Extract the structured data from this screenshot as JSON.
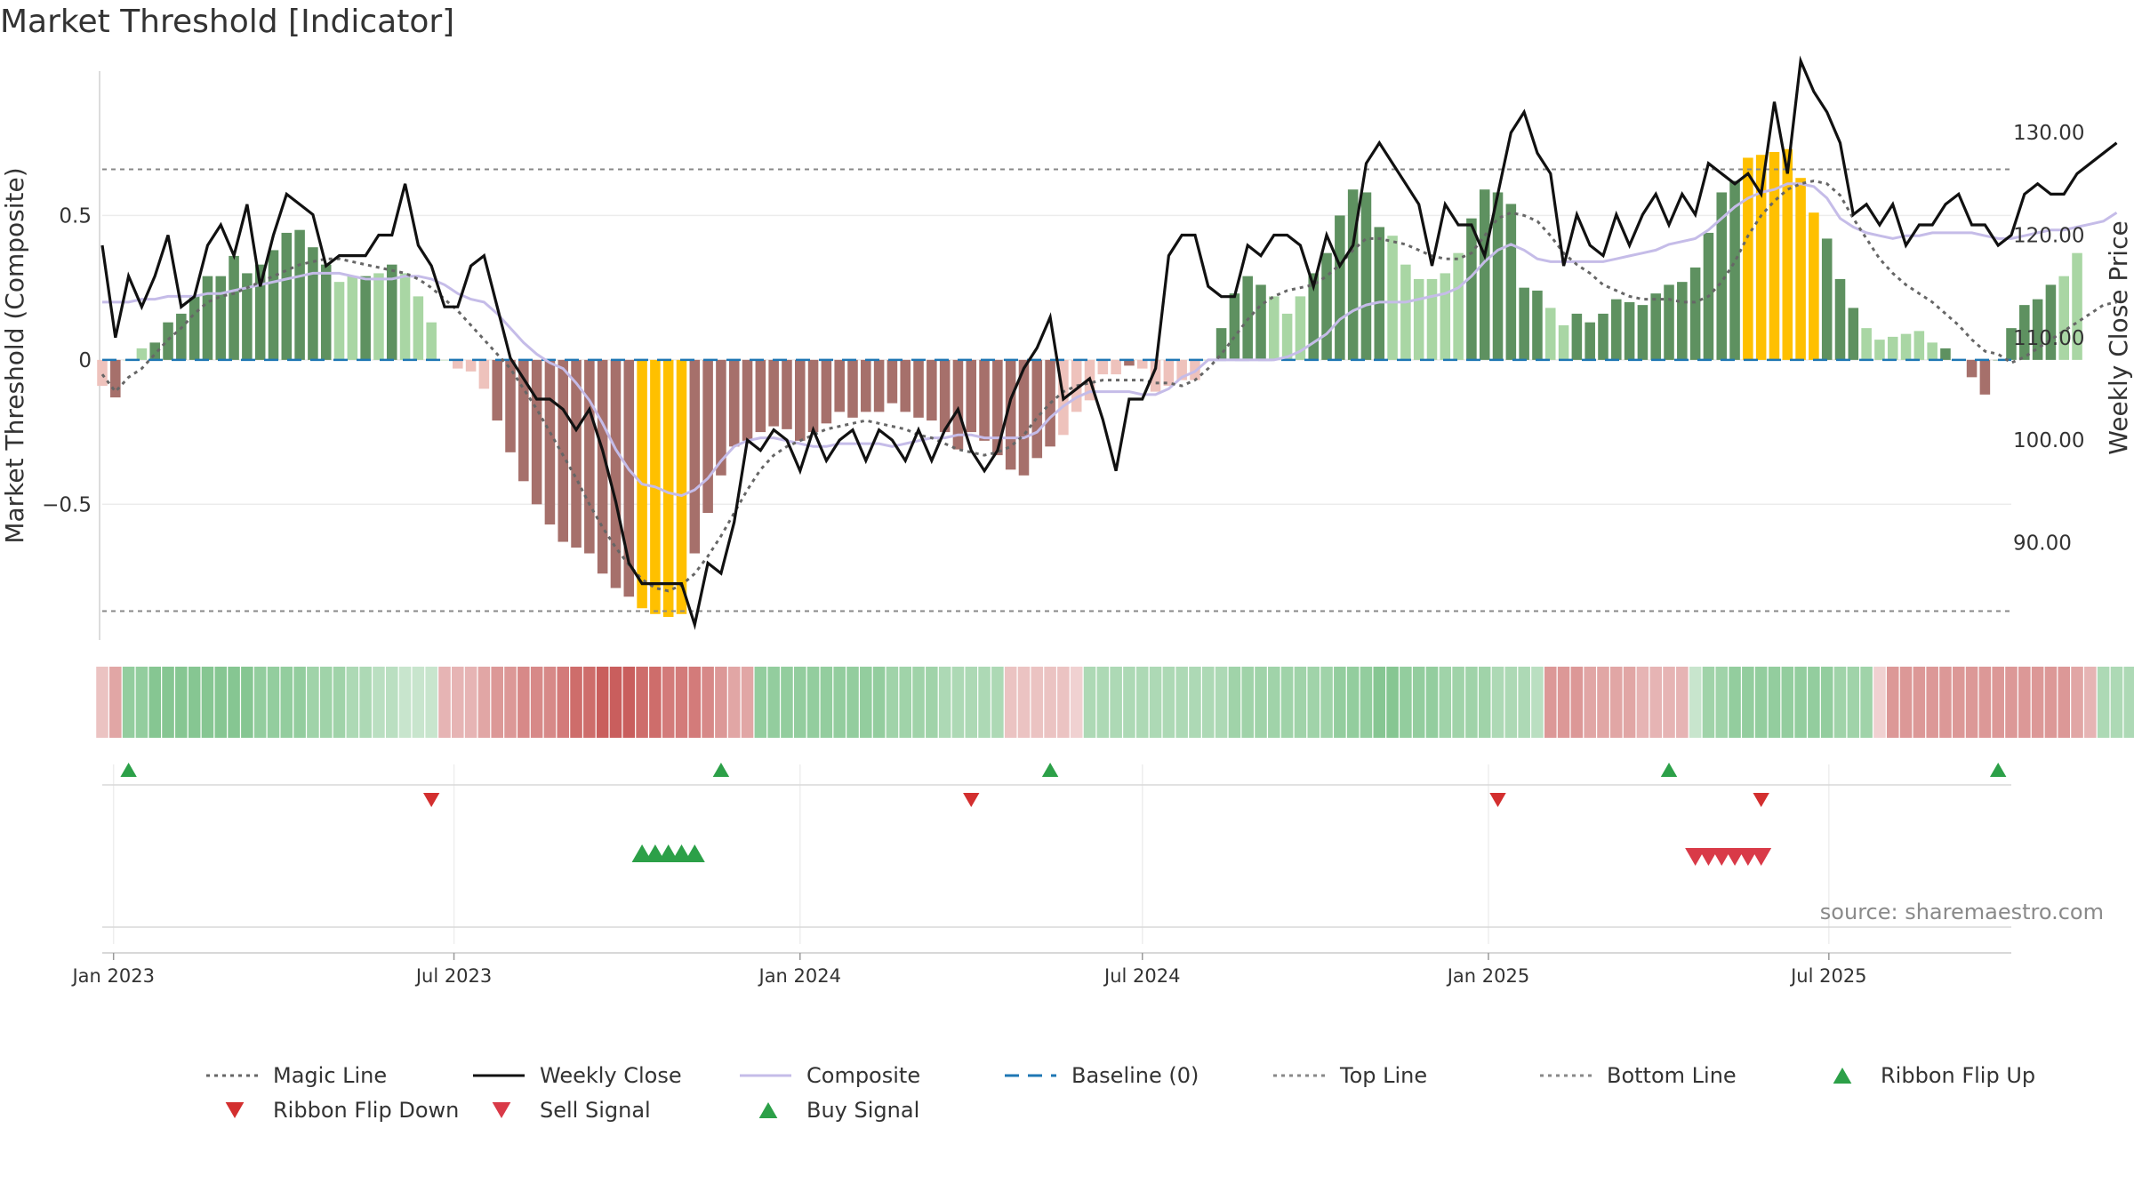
{
  "title": "Market Threshold [Indicator]",
  "source_note": "source: sharemaestro.com",
  "colors": {
    "bar_pos_strong": "#5e9160",
    "bar_pos_weak": "#a9d6a4",
    "bar_neg_strong": "#a6706b",
    "bar_neg_weak": "#eec2bc",
    "bar_extreme": "#ffc000",
    "close": "#111111",
    "composite": "#c5bce8",
    "magic": "#666666",
    "baseline": "#1f77b4",
    "threshold": "#888888",
    "buy": "#2ca048",
    "sell": "#d93a48",
    "flip_down": "#d32f2f"
  },
  "chart_data": {
    "type": "bar",
    "xlabel": "",
    "ylabel": "Market Threshold (Composite)",
    "y2label": "Weekly Close Price",
    "ylim": [
      -0.97,
      1.0
    ],
    "y2lim": [
      80.5,
      136
    ],
    "yticks": [
      0.5,
      0,
      -0.5
    ],
    "ytick_labels": [
      "0.5",
      "0",
      "−0.5"
    ],
    "y2ticks": [
      130,
      120,
      110,
      100,
      90
    ],
    "y2tick_labels": [
      "130.00",
      "120.00",
      "110.00",
      "100.00",
      "90.00"
    ],
    "top_line": 0.66,
    "bottom_line": -0.87,
    "x_start": "2022-12-26",
    "x_end": "2025-10-06",
    "x_ticks": [
      {
        "label": "Jan 2023",
        "date": "2023-01-01"
      },
      {
        "label": "Jul 2023",
        "date": "2023-07-01"
      },
      {
        "label": "Jan 2024",
        "date": "2024-01-01"
      },
      {
        "label": "Jul 2024",
        "date": "2024-07-01"
      },
      {
        "label": "Jan 2025",
        "date": "2025-01-01"
      },
      {
        "label": "Jul 2025",
        "date": "2025-07-01"
      }
    ],
    "composite_bars": [
      {
        "start": "2022-12-26",
        "values": [
          -0.09,
          -0.13,
          0.0,
          0.04,
          0.06,
          0.13,
          0.16,
          0.22,
          0.29,
          0.29,
          0.36,
          0.3,
          0.33,
          0.38,
          0.44,
          0.45,
          0.39,
          0.33,
          0.27,
          0.29,
          0.29,
          0.3,
          0.33,
          0.3,
          0.22,
          0.13,
          0.0,
          -0.03,
          -0.04,
          -0.1,
          -0.21,
          -0.32,
          -0.42,
          -0.5,
          -0.57,
          -0.63,
          -0.65,
          -0.67,
          -0.74,
          -0.79,
          -0.82,
          -0.86,
          -0.88,
          -0.89,
          -0.88,
          -0.67,
          -0.53,
          -0.4,
          -0.3,
          -0.28,
          -0.25,
          -0.23,
          -0.24,
          -0.28,
          -0.25,
          -0.22,
          -0.18,
          -0.2,
          -0.18,
          -0.18,
          -0.15,
          -0.18,
          -0.2,
          -0.21,
          -0.25,
          -0.31,
          -0.25,
          -0.28,
          -0.33,
          -0.38,
          -0.4,
          -0.34,
          -0.3,
          -0.26,
          -0.18,
          -0.14,
          -0.05,
          -0.05,
          -0.02,
          -0.03,
          -0.11,
          -0.09,
          -0.07,
          -0.07,
          0.0,
          0.11,
          0.23,
          0.29,
          0.26,
          0.22,
          0.16,
          0.22,
          0.3,
          0.37,
          0.5,
          0.59,
          0.58,
          0.46,
          0.43,
          0.33,
          0.28,
          0.28,
          0.3,
          0.37,
          0.49,
          0.59,
          0.58,
          0.54,
          0.25,
          0.24,
          0.18,
          0.12,
          0.16,
          0.13,
          0.16,
          0.21,
          0.2,
          0.19,
          0.23,
          0.26,
          0.27,
          0.32,
          0.44,
          0.58,
          0.62,
          0.7,
          0.71,
          0.72,
          0.73,
          0.63,
          0.51,
          0.42,
          0.28,
          0.18,
          0.11,
          0.07,
          0.08,
          0.09,
          0.1,
          0.06,
          0.04,
          0.0,
          -0.06,
          -0.12,
          0.0,
          0.11,
          0.19,
          0.21,
          0.26,
          0.29,
          0.37
        ],
        "extreme_idx": [
          41,
          42,
          43,
          44,
          125,
          126,
          127,
          128,
          129,
          130
        ],
        "strong_idx": [
          1,
          4,
          5,
          6,
          7,
          8,
          9,
          10,
          11,
          12,
          13,
          14,
          15,
          16,
          17,
          20,
          22,
          30,
          31,
          32,
          33,
          34,
          35,
          36,
          37,
          38,
          39,
          40,
          41,
          42,
          43,
          44,
          45,
          46,
          47,
          48,
          49,
          50,
          51,
          52,
          53,
          54,
          55,
          56,
          57,
          58,
          59,
          60,
          61,
          62,
          63,
          64,
          65,
          66,
          67,
          68,
          69,
          70,
          71,
          72,
          78,
          85,
          86,
          87,
          88,
          92,
          93,
          94,
          95,
          96,
          97,
          104,
          105,
          106,
          107,
          108,
          109,
          112,
          113,
          114,
          115,
          116,
          117,
          118,
          119,
          120,
          121,
          122,
          123,
          124,
          131,
          132,
          133,
          140,
          141,
          142,
          143,
          144,
          145,
          146,
          147,
          148
        ]
      }
    ],
    "weekly_close": [
      119,
      110,
      116,
      113,
      116,
      120,
      113,
      114,
      119,
      121,
      118,
      123,
      115,
      120,
      124,
      123,
      122,
      117,
      118,
      118,
      118,
      120,
      120,
      125,
      119,
      117,
      113,
      113,
      117,
      118,
      113,
      108,
      106,
      104,
      104,
      103,
      101,
      103,
      99,
      94,
      88,
      86,
      86,
      86,
      86,
      82,
      88,
      87,
      92,
      100,
      99,
      101,
      100,
      97,
      101,
      98,
      100,
      101,
      98,
      101,
      100,
      98,
      101,
      98,
      101,
      103,
      99,
      97,
      99,
      104,
      107,
      109,
      112,
      104,
      105,
      106,
      102,
      97,
      104,
      104,
      107,
      118,
      120,
      120,
      115,
      114,
      114,
      119,
      118,
      120,
      120,
      119,
      115,
      120,
      117,
      119,
      127,
      129,
      127,
      125,
      123,
      117,
      123,
      121,
      121,
      118,
      124,
      130,
      132,
      128,
      126,
      117,
      122,
      119,
      118,
      122,
      119,
      122,
      124,
      121,
      124,
      122,
      127,
      126,
      125,
      126,
      124,
      133,
      126,
      137,
      134,
      132,
      129,
      122,
      123,
      121,
      123,
      119,
      121,
      121,
      123,
      124,
      121,
      121,
      119,
      120,
      124,
      125,
      124,
      124,
      126,
      127,
      128,
      129
    ],
    "composite_line": [
      0.2,
      0.2,
      0.2,
      0.21,
      0.21,
      0.22,
      0.22,
      0.22,
      0.23,
      0.23,
      0.24,
      0.25,
      0.26,
      0.27,
      0.28,
      0.29,
      0.3,
      0.3,
      0.3,
      0.29,
      0.28,
      0.28,
      0.28,
      0.29,
      0.29,
      0.28,
      0.26,
      0.23,
      0.21,
      0.2,
      0.16,
      0.11,
      0.06,
      0.02,
      -0.01,
      -0.03,
      -0.08,
      -0.14,
      -0.22,
      -0.31,
      -0.38,
      -0.43,
      -0.44,
      -0.46,
      -0.47,
      -0.45,
      -0.41,
      -0.35,
      -0.3,
      -0.28,
      -0.27,
      -0.27,
      -0.28,
      -0.29,
      -0.3,
      -0.3,
      -0.29,
      -0.29,
      -0.29,
      -0.29,
      -0.3,
      -0.29,
      -0.28,
      -0.27,
      -0.27,
      -0.26,
      -0.26,
      -0.27,
      -0.27,
      -0.27,
      -0.27,
      -0.25,
      -0.2,
      -0.16,
      -0.13,
      -0.11,
      -0.11,
      -0.11,
      -0.11,
      -0.12,
      -0.12,
      -0.1,
      -0.06,
      -0.04,
      0.0,
      0.0,
      0.0,
      0.0,
      0.0,
      0.0,
      0.01,
      0.03,
      0.06,
      0.09,
      0.14,
      0.17,
      0.19,
      0.2,
      0.2,
      0.2,
      0.21,
      0.22,
      0.23,
      0.25,
      0.29,
      0.34,
      0.38,
      0.4,
      0.38,
      0.35,
      0.34,
      0.34,
      0.34,
      0.34,
      0.34,
      0.35,
      0.36,
      0.37,
      0.38,
      0.4,
      0.41,
      0.42,
      0.45,
      0.49,
      0.53,
      0.56,
      0.58,
      0.59,
      0.61,
      0.61,
      0.6,
      0.56,
      0.49,
      0.46,
      0.44,
      0.43,
      0.42,
      0.43,
      0.43,
      0.44,
      0.44,
      0.44,
      0.44,
      0.43,
      0.42,
      0.42,
      0.43,
      0.44,
      0.45,
      0.45,
      0.46,
      0.47,
      0.48,
      0.51
    ],
    "magic_line": [
      -0.05,
      -0.11,
      -0.06,
      -0.03,
      0.02,
      0.07,
      0.11,
      0.16,
      0.2,
      0.22,
      0.23,
      0.25,
      0.27,
      0.29,
      0.31,
      0.33,
      0.34,
      0.35,
      0.35,
      0.34,
      0.33,
      0.32,
      0.31,
      0.3,
      0.28,
      0.25,
      0.21,
      0.17,
      0.12,
      0.07,
      0.02,
      -0.03,
      -0.1,
      -0.17,
      -0.25,
      -0.33,
      -0.41,
      -0.5,
      -0.58,
      -0.65,
      -0.71,
      -0.76,
      -0.79,
      -0.8,
      -0.78,
      -0.74,
      -0.68,
      -0.61,
      -0.53,
      -0.45,
      -0.38,
      -0.33,
      -0.3,
      -0.28,
      -0.26,
      -0.24,
      -0.23,
      -0.22,
      -0.21,
      -0.22,
      -0.23,
      -0.24,
      -0.26,
      -0.27,
      -0.29,
      -0.31,
      -0.32,
      -0.33,
      -0.32,
      -0.3,
      -0.26,
      -0.2,
      -0.15,
      -0.11,
      -0.09,
      -0.08,
      -0.07,
      -0.07,
      -0.07,
      -0.07,
      -0.08,
      -0.08,
      -0.09,
      -0.07,
      -0.03,
      0.02,
      0.08,
      0.14,
      0.19,
      0.22,
      0.24,
      0.25,
      0.26,
      0.29,
      0.33,
      0.38,
      0.42,
      0.42,
      0.41,
      0.4,
      0.38,
      0.36,
      0.35,
      0.35,
      0.37,
      0.43,
      0.49,
      0.51,
      0.5,
      0.48,
      0.43,
      0.37,
      0.33,
      0.3,
      0.26,
      0.24,
      0.22,
      0.21,
      0.21,
      0.21,
      0.2,
      0.2,
      0.22,
      0.27,
      0.34,
      0.43,
      0.5,
      0.55,
      0.59,
      0.61,
      0.62,
      0.61,
      0.57,
      0.49,
      0.42,
      0.35,
      0.3,
      0.26,
      0.23,
      0.2,
      0.16,
      0.12,
      0.07,
      0.03,
      0.02,
      -0.01,
      0.01,
      0.04,
      0.07,
      0.1,
      0.13,
      0.16,
      0.19,
      0.2
    ],
    "ribbon": [
      -0.2,
      -0.4,
      0.6,
      0.6,
      0.7,
      0.7,
      0.7,
      0.7,
      0.7,
      0.7,
      0.7,
      0.7,
      0.6,
      0.6,
      0.6,
      0.6,
      0.5,
      0.5,
      0.5,
      0.4,
      0.4,
      0.3,
      0.3,
      0.2,
      0.2,
      0.2,
      -0.3,
      -0.3,
      -0.3,
      -0.4,
      -0.5,
      -0.5,
      -0.6,
      -0.6,
      -0.6,
      -0.7,
      -0.8,
      -0.8,
      -0.9,
      -0.9,
      -0.9,
      -0.8,
      -0.8,
      -0.7,
      -0.7,
      -0.7,
      -0.6,
      -0.5,
      -0.4,
      -0.4,
      0.6,
      0.6,
      0.6,
      0.6,
      0.6,
      0.6,
      0.6,
      0.6,
      0.6,
      0.6,
      0.5,
      0.5,
      0.5,
      0.5,
      0.4,
      0.4,
      0.4,
      0.4,
      0.4,
      -0.2,
      -0.2,
      -0.2,
      -0.2,
      -0.2,
      -0.1,
      0.4,
      0.4,
      0.4,
      0.4,
      0.4,
      0.4,
      0.4,
      0.4,
      0.4,
      0.4,
      0.4,
      0.5,
      0.5,
      0.5,
      0.5,
      0.5,
      0.5,
      0.5,
      0.5,
      0.6,
      0.6,
      0.6,
      0.7,
      0.7,
      0.6,
      0.6,
      0.6,
      0.5,
      0.5,
      0.5,
      0.5,
      0.4,
      0.4,
      0.4,
      0.3,
      -0.5,
      -0.5,
      -0.5,
      -0.4,
      -0.4,
      -0.4,
      -0.4,
      -0.3,
      -0.3,
      -0.3,
      -0.3,
      0.2,
      0.5,
      0.5,
      0.6,
      0.6,
      0.6,
      0.6,
      0.6,
      0.6,
      0.6,
      0.6,
      0.5,
      0.5,
      0.5,
      -0.1,
      -0.5,
      -0.5,
      -0.5,
      -0.5,
      -0.5,
      -0.5,
      -0.5,
      -0.5,
      -0.5,
      -0.5,
      -0.5,
      -0.5,
      -0.5,
      -0.5,
      -0.4,
      -0.3,
      0.4,
      0.4,
      0.4
    ],
    "ribbon_flip_up": [
      "2023-01-09",
      "2023-11-20",
      "2024-05-13",
      "2025-04-07",
      "2025-09-29"
    ],
    "ribbon_flip_down": [
      "2023-06-19",
      "2024-04-01",
      "2025-01-06",
      "2025-05-26"
    ],
    "buy_signals": [
      "2023-10-09",
      "2023-10-16",
      "2023-10-23",
      "2023-10-30",
      "2023-11-06"
    ],
    "sell_signals": [
      "2025-04-21",
      "2025-04-28",
      "2025-05-05",
      "2025-05-12",
      "2025-05-19",
      "2025-05-26"
    ],
    "legend": [
      {
        "label": "Magic Line",
        "type": "dotted",
        "color": "#666666"
      },
      {
        "label": "Weekly Close",
        "type": "solid",
        "color": "#111111"
      },
      {
        "label": "Composite",
        "type": "solid",
        "color": "#c5bce8"
      },
      {
        "label": "Baseline (0)",
        "type": "dashed",
        "color": "#1f77b4"
      },
      {
        "label": "Top Line",
        "type": "dotted",
        "color": "#888888"
      },
      {
        "label": "Bottom Line",
        "type": "dotted",
        "color": "#888888"
      },
      {
        "label": "Ribbon Flip Up",
        "type": "tri-up",
        "color": "#2ca048"
      },
      {
        "label": "Ribbon Flip Down",
        "type": "tri-down",
        "color": "#d32f2f"
      },
      {
        "label": "Sell Signal",
        "type": "tri-down",
        "color": "#d93a48"
      },
      {
        "label": "Buy Signal",
        "type": "tri-up",
        "color": "#2ca048"
      }
    ]
  }
}
